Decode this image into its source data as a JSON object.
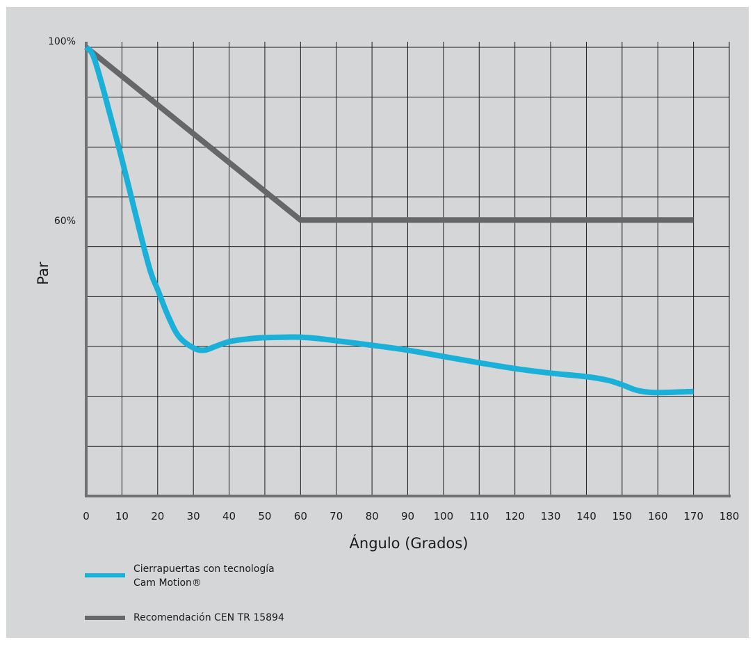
{
  "chart_data": {
    "type": "line",
    "xlabel": "Ángulo (Grados)",
    "ylabel": "Par",
    "xlim": [
      0,
      180
    ],
    "ylim": [
      0,
      100
    ],
    "x_ticks": [
      "0",
      "10",
      "20",
      "30",
      "40",
      "50",
      "60",
      "70",
      "80",
      "90",
      "100",
      "110",
      "120",
      "130",
      "140",
      "150",
      "160",
      "170",
      "180"
    ],
    "y_tick_labels": [
      {
        "value": 100,
        "label": "100%"
      },
      {
        "value": 60,
        "label": "60%"
      }
    ],
    "grid": true,
    "legend_position": "bottom-left",
    "series": [
      {
        "name": "Cierrapuertas con tecnología Cam Motion®",
        "color": "#1ab0d8",
        "points": [
          [
            0,
            100
          ],
          [
            2,
            98
          ],
          [
            5,
            90
          ],
          [
            10,
            75
          ],
          [
            15,
            59
          ],
          [
            18,
            50
          ],
          [
            20,
            46
          ],
          [
            23,
            40
          ],
          [
            26,
            35.5
          ],
          [
            30,
            33
          ],
          [
            33,
            32.5
          ],
          [
            36,
            33.3
          ],
          [
            40,
            34.4
          ],
          [
            45,
            35
          ],
          [
            50,
            35.3
          ],
          [
            55,
            35.4
          ],
          [
            60,
            35.4
          ],
          [
            65,
            35.1
          ],
          [
            70,
            34.6
          ],
          [
            80,
            33.6
          ],
          [
            90,
            32.5
          ],
          [
            100,
            31.1
          ],
          [
            110,
            29.7
          ],
          [
            120,
            28.4
          ],
          [
            130,
            27.4
          ],
          [
            140,
            26.6
          ],
          [
            146,
            25.8
          ],
          [
            150,
            24.8
          ],
          [
            154,
            23.6
          ],
          [
            158,
            23.1
          ],
          [
            163,
            23.1
          ],
          [
            170,
            23.3
          ]
        ]
      },
      {
        "name": "Recomendación CEN TR 15894",
        "color": "#666769",
        "points": [
          [
            0,
            100
          ],
          [
            60,
            61.5
          ],
          [
            170,
            61.5
          ]
        ]
      }
    ]
  },
  "legend": [
    {
      "line1": "Cierrapuertas con tecnología",
      "line2": "Cam Motion®",
      "color": "#1ab0d8"
    },
    {
      "line1": "Recomendación CEN TR 15894",
      "line2": "",
      "color": "#666769"
    }
  ]
}
